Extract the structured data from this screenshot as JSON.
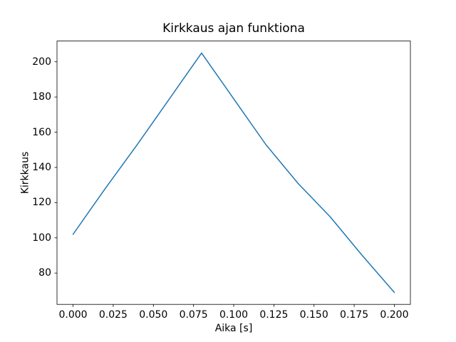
{
  "chart_data": {
    "type": "line",
    "title": "Kirkkaus ajan funktiona",
    "xlabel": "Aika [s]",
    "ylabel": "Kirkkaus",
    "x": [
      0.0,
      0.02,
      0.04,
      0.06,
      0.08,
      0.1,
      0.12,
      0.14,
      0.16,
      0.18,
      0.2
    ],
    "y": [
      102,
      128,
      153,
      179,
      205,
      179,
      153,
      131,
      112,
      90,
      69
    ],
    "xlim": [
      -0.01,
      0.21
    ],
    "ylim": [
      62.2,
      211.8
    ],
    "xtick_values": [
      0.0,
      0.025,
      0.05,
      0.075,
      0.1,
      0.125,
      0.15,
      0.175,
      0.2
    ],
    "xtick_labels": [
      "0.000",
      "0.025",
      "0.050",
      "0.075",
      "0.100",
      "0.125",
      "0.150",
      "0.175",
      "0.200"
    ],
    "ytick_values": [
      80,
      100,
      120,
      140,
      160,
      180,
      200
    ],
    "ytick_labels": [
      "80",
      "100",
      "120",
      "140",
      "160",
      "180",
      "200"
    ],
    "line_color": "#1f77b4",
    "axis_color": "#000000",
    "grid": false
  }
}
